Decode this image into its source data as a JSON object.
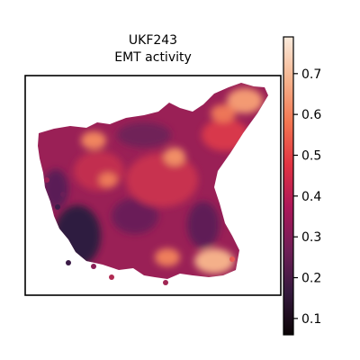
{
  "chart_data": {
    "type": "heatmap",
    "subtype": "spatial-hexbin",
    "title_lines": [
      "UKF243",
      "EMT activity"
    ],
    "colormap": "rocket",
    "colorbar": {
      "min": 0.06,
      "max": 0.79,
      "ticks": [
        0.1,
        0.2,
        0.3,
        0.4,
        0.5,
        0.6,
        0.7
      ],
      "tick_labels": [
        "0.1",
        "0.2",
        "0.3",
        "0.4",
        "0.5",
        "0.6",
        "0.7"
      ],
      "position": "right"
    },
    "axes": {
      "frame": true,
      "xticks": false,
      "yticks": false,
      "grid": false
    },
    "value_range_observed": [
      0.06,
      0.79
    ],
    "high_activity_regions": [
      "upper-right arm",
      "lower-right lobe",
      "upper-left cluster"
    ],
    "low_activity_regions": [
      "lower-left edge"
    ]
  }
}
